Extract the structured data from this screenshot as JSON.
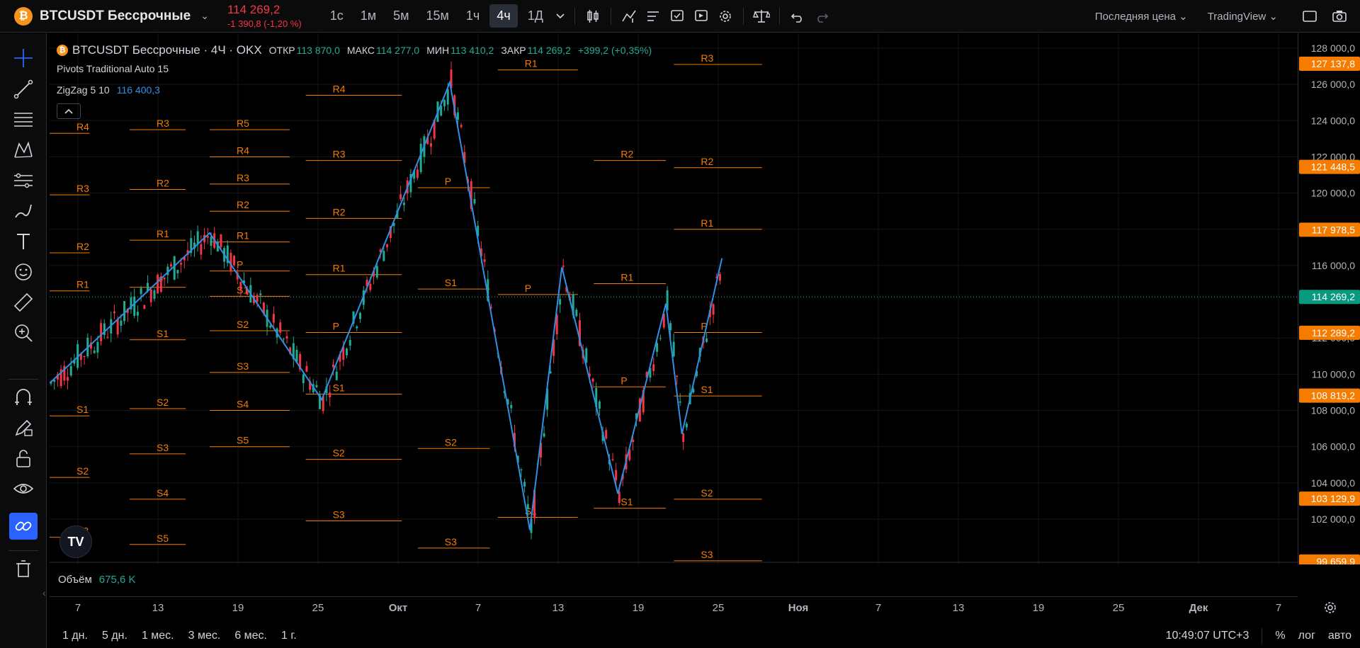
{
  "topbar": {
    "symbol": "BTCUSDT Бессрочные",
    "price": "114 269,2",
    "change": "-1 390,8 (-1,20 %)",
    "intervals": [
      "1с",
      "1м",
      "5м",
      "15м",
      "1ч",
      "4ч",
      "1Д"
    ],
    "active_interval": "4ч",
    "price_type": "Последняя цена",
    "datasource": "TradingView"
  },
  "legend": {
    "title": "BTCUSDT Бессрочные · 4Ч · OKX",
    "open_label": "ОТКР",
    "open": "113 870,0",
    "high_label": "МАКС",
    "high": "114 277,0",
    "low_label": "МИН",
    "low": "113 410,2",
    "close_label": "ЗАКР",
    "close": "114 269,2",
    "change": "+399,2 (+0,35%)",
    "indicator1": "Pivots Traditional Auto 15",
    "indicator2_name": "ZigZag 5 10",
    "indicator2_value": "116 400,3",
    "volume_label": "Объём",
    "volume_value": "675,6 K"
  },
  "price_axis": {
    "ticks": [
      "128 000,0",
      "126 000,0",
      "124 000,0",
      "122 000,0",
      "120 000,0",
      "118 000,0",
      "116 000,0",
      "112 000,0",
      "110 000,0",
      "108 000,0",
      "106 000,0",
      "104 000,0",
      "102 000,0"
    ],
    "tick_values": [
      128000,
      126000,
      124000,
      122000,
      120000,
      118000,
      116000,
      112000,
      110000,
      108000,
      106000,
      104000,
      102000
    ],
    "tags": [
      {
        "text": "127 137,8",
        "value": 127137.8,
        "color": "#f57c00"
      },
      {
        "text": "121 448,5",
        "value": 121448.5,
        "color": "#f57c00"
      },
      {
        "text": "117 978,5",
        "value": 117978.5,
        "color": "#f57c00"
      },
      {
        "text": "114 269,2",
        "value": 114269.2,
        "color": "#089981"
      },
      {
        "text": "112 289,2",
        "value": 112289.2,
        "color": "#f57c00"
      },
      {
        "text": "108 819,2",
        "value": 108819.2,
        "color": "#f57c00"
      },
      {
        "text": "103 129,9",
        "value": 103129.9,
        "color": "#f57c00"
      },
      {
        "text": "99 659,9",
        "value": 99659.9,
        "color": "#f57c00"
      }
    ]
  },
  "time_axis": {
    "labels": [
      "7",
      "13",
      "19",
      "25",
      "Окт",
      "7",
      "13",
      "19",
      "25",
      "Ноя",
      "7",
      "13",
      "19",
      "25",
      "Дек",
      "7"
    ]
  },
  "range_buttons": [
    "1 дн.",
    "5 дн.",
    "1 мес.",
    "3 мес.",
    "6 мес.",
    "1 г."
  ],
  "status": {
    "clock": "10:49:07 UTC+3",
    "percent": "%",
    "log": "лог",
    "auto": "авто"
  },
  "chart_data": {
    "type": "candlestick",
    "pivot_color": "#f57c00",
    "zigzag_color": "#2f8fe6",
    "pivot_groups": [
      {
        "from": 0,
        "to": 0.5,
        "levels": [
          {
            "l": "R4",
            "v": 123300
          },
          {
            "l": "R3",
            "v": 119900
          },
          {
            "l": "R2",
            "v": 116700
          },
          {
            "l": "R1",
            "v": 114600
          },
          {
            "l": "S1",
            "v": 107700
          },
          {
            "l": "S2",
            "v": 104300
          },
          {
            "l": "S3",
            "v": 101000
          }
        ]
      },
      {
        "from": 1,
        "to": 1.7,
        "levels": [
          {
            "l": "R3",
            "v": 123500
          },
          {
            "l": "R2",
            "v": 120200
          },
          {
            "l": "R1",
            "v": 117400
          },
          {
            "l": "P",
            "v": 114800
          },
          {
            "l": "S1",
            "v": 111900
          },
          {
            "l": "S2",
            "v": 108100
          },
          {
            "l": "S3",
            "v": 105600
          },
          {
            "l": "S4",
            "v": 103100
          },
          {
            "l": "S5",
            "v": 100600
          }
        ]
      },
      {
        "from": 2,
        "to": 3.0,
        "levels": [
          {
            "l": "R5",
            "v": 123500
          },
          {
            "l": "R4",
            "v": 122000
          },
          {
            "l": "R3",
            "v": 120500
          },
          {
            "l": "R2",
            "v": 119000
          },
          {
            "l": "R1",
            "v": 117300
          },
          {
            "l": "P",
            "v": 115700
          },
          {
            "l": "S1",
            "v": 114300
          },
          {
            "l": "S2",
            "v": 112400
          },
          {
            "l": "S3",
            "v": 110100
          },
          {
            "l": "S4",
            "v": 108000
          },
          {
            "l": "S5",
            "v": 106000
          }
        ]
      },
      {
        "from": 3.2,
        "to": 4.4,
        "levels": [
          {
            "l": "R4",
            "v": 125400
          },
          {
            "l": "R3",
            "v": 121800
          },
          {
            "l": "R2",
            "v": 118600
          },
          {
            "l": "R1",
            "v": 115500
          },
          {
            "l": "P",
            "v": 112300
          },
          {
            "l": "S1",
            "v": 108900
          },
          {
            "l": "S2",
            "v": 105300
          },
          {
            "l": "S3",
            "v": 101900
          }
        ]
      },
      {
        "from": 4.6,
        "to": 5.5,
        "levels": [
          {
            "l": "P",
            "v": 120300
          },
          {
            "l": "S1",
            "v": 114700
          },
          {
            "l": "S2",
            "v": 105900
          },
          {
            "l": "S3",
            "v": 100400
          }
        ]
      },
      {
        "from": 5.6,
        "to": 6.6,
        "levels": [
          {
            "l": "R1",
            "v": 126800
          },
          {
            "l": "P",
            "v": 114400
          },
          {
            "l": "S1",
            "v": 102100
          }
        ]
      },
      {
        "from": 6.8,
        "to": 7.7,
        "levels": [
          {
            "l": "R2",
            "v": 121800
          },
          {
            "l": "R1",
            "v": 115000
          },
          {
            "l": "P",
            "v": 109300
          },
          {
            "l": "S1",
            "v": 102600
          }
        ]
      },
      {
        "from": 7.8,
        "to": 8.9,
        "levels": [
          {
            "l": "R3",
            "v": 127100
          },
          {
            "l": "R2",
            "v": 121400
          },
          {
            "l": "R1",
            "v": 118000
          },
          {
            "l": "P",
            "v": 112300
          },
          {
            "l": "S1",
            "v": 108800
          },
          {
            "l": "S2",
            "v": 103100
          },
          {
            "l": "S3",
            "v": 99700
          }
        ]
      }
    ],
    "zigzag": [
      {
        "t": 0,
        "v": 109500
      },
      {
        "t": 2.0,
        "v": 117800
      },
      {
        "t": 3.4,
        "v": 108600
      },
      {
        "t": 5.0,
        "v": 126100
      },
      {
        "t": 6.0,
        "v": 101400
      },
      {
        "t": 6.4,
        "v": 115900
      },
      {
        "t": 7.1,
        "v": 103400
      },
      {
        "t": 7.7,
        "v": 113900
      },
      {
        "t": 7.9,
        "v": 106700
      },
      {
        "t": 8.4,
        "v": 116400
      }
    ]
  }
}
